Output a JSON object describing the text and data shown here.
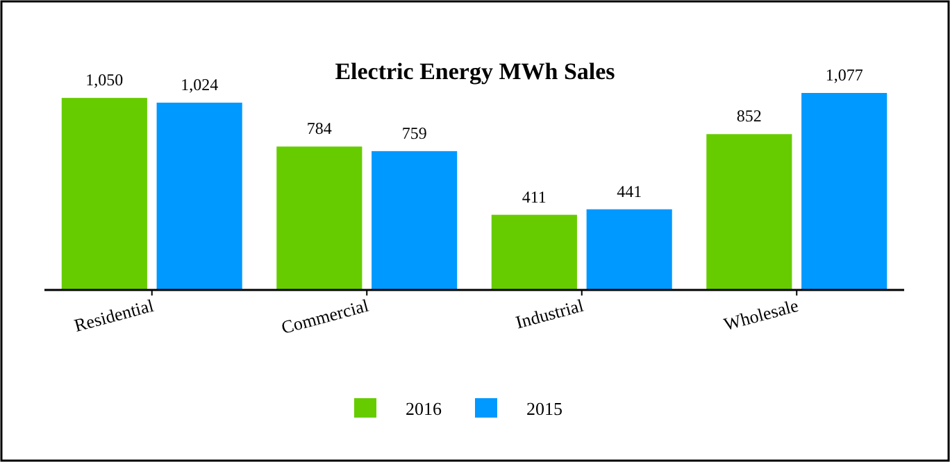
{
  "chart_data": {
    "type": "bar",
    "title": "Electric Energy MWh Sales",
    "categories": [
      "Residential",
      "Commercial",
      "Industrial",
      "Wholesale"
    ],
    "series": [
      {
        "name": "2016",
        "color": "#66cc00",
        "values": [
          1050,
          784,
          411,
          852
        ],
        "value_labels": [
          "1,050",
          "784",
          "411",
          "852"
        ]
      },
      {
        "name": "2015",
        "color": "#0099ff",
        "values": [
          1024,
          759,
          441,
          1077
        ],
        "value_labels": [
          "1,024",
          "759",
          "441",
          "1,077"
        ]
      }
    ],
    "legend": "bottom",
    "grid": false
  }
}
